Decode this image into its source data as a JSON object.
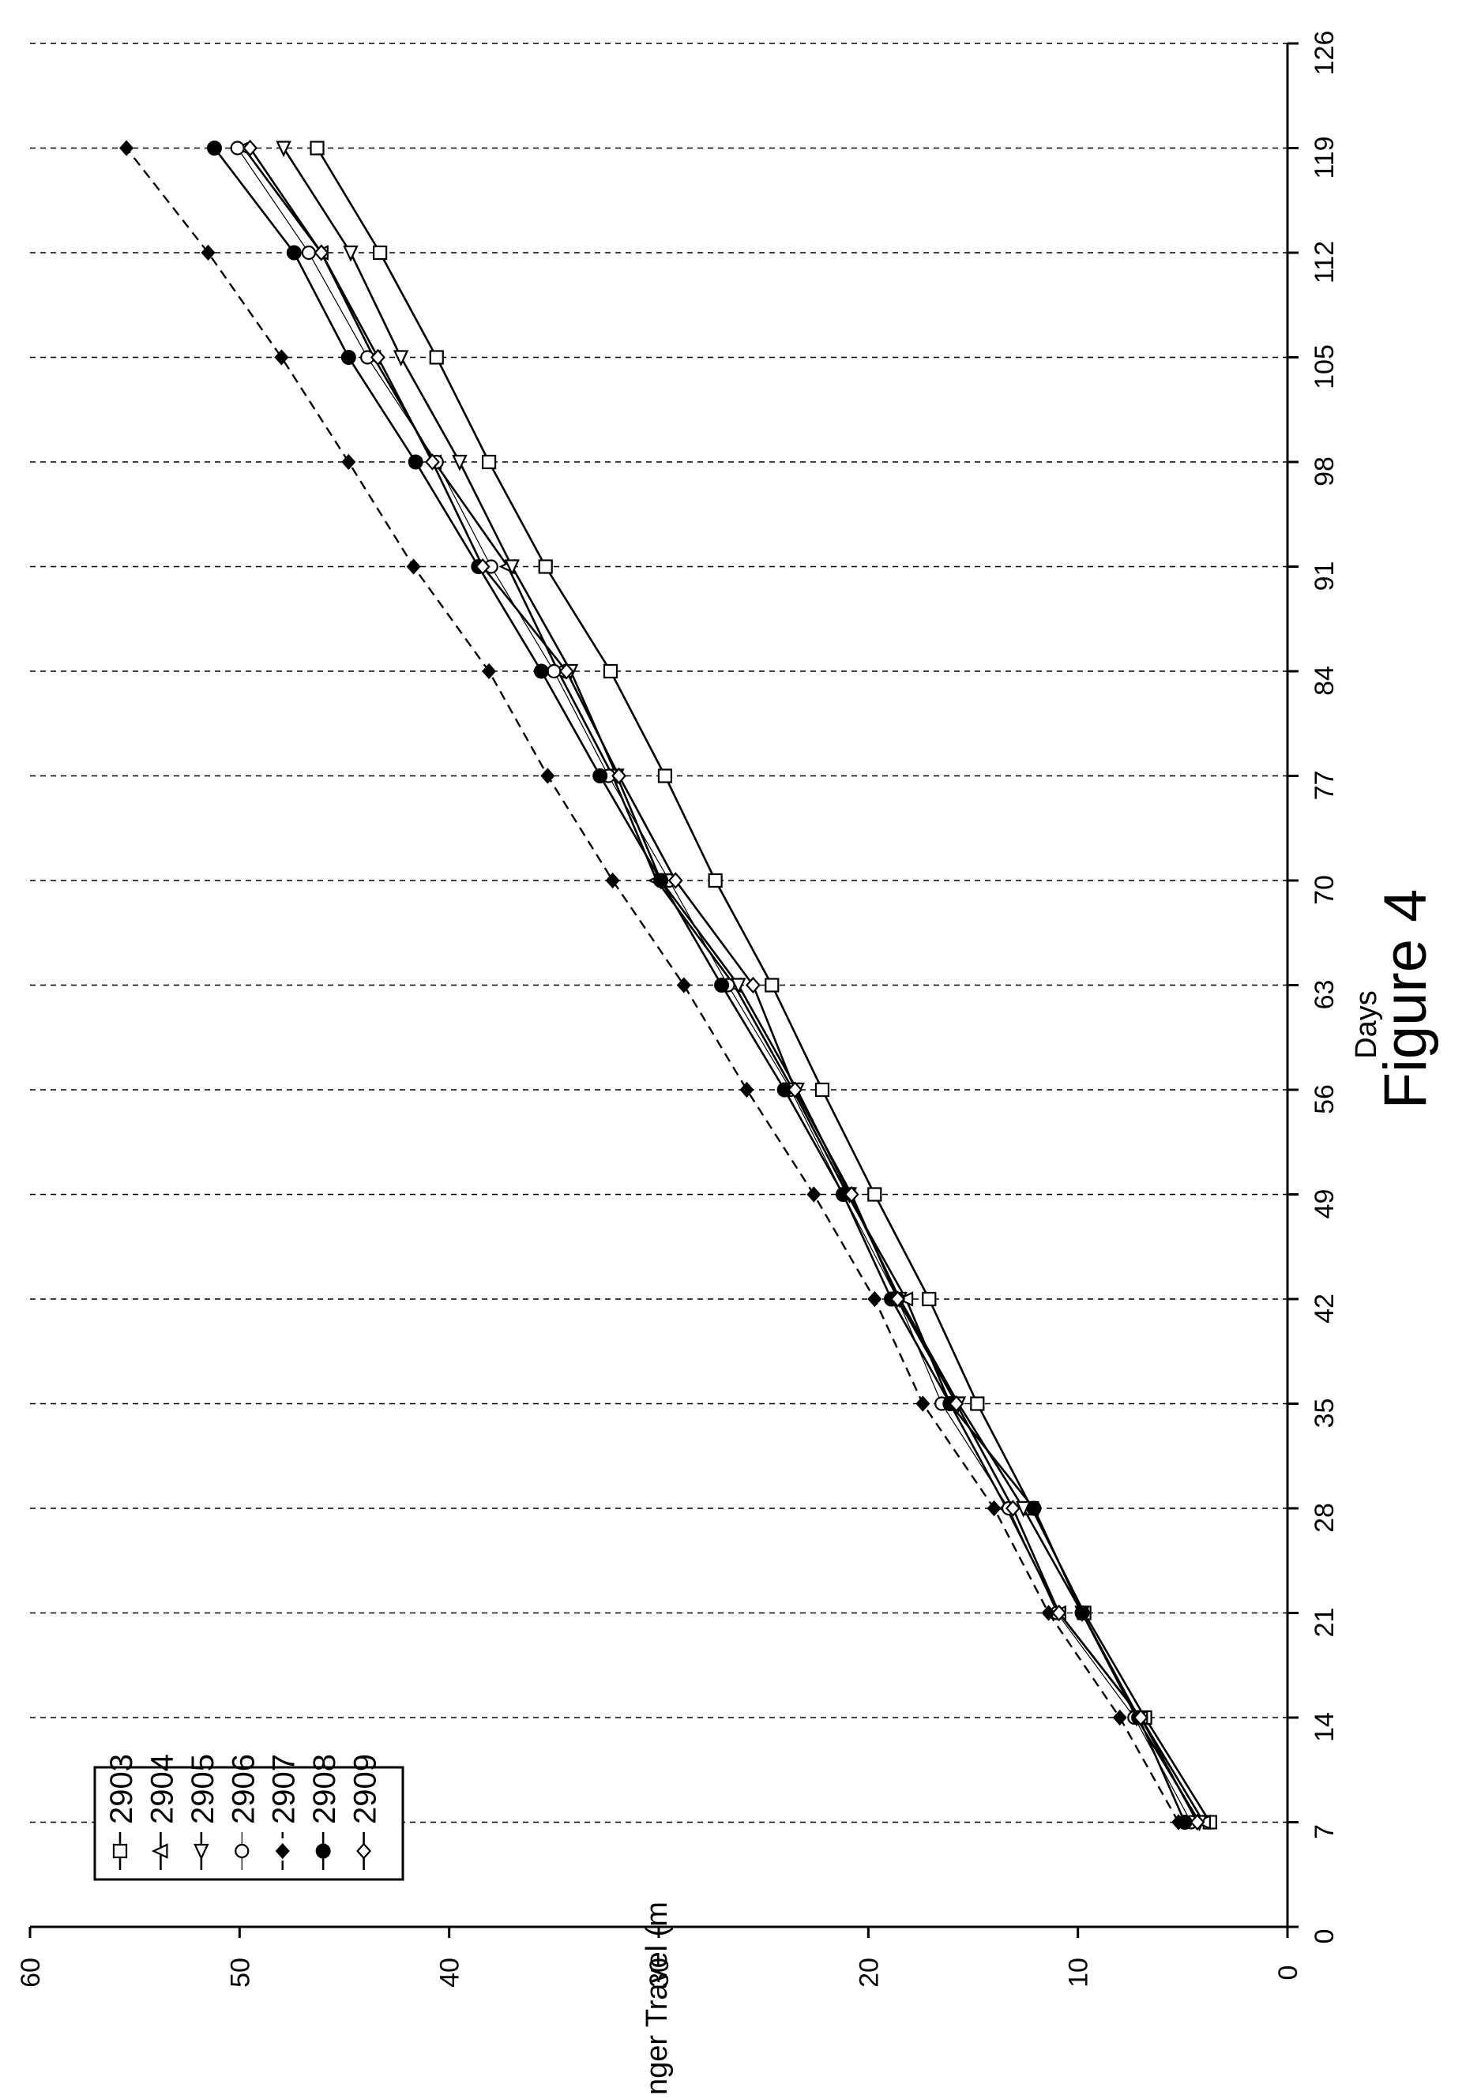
{
  "figure_label": "Figure 4",
  "chart_data": {
    "type": "line",
    "xlabel": "Days",
    "ylabel": "Plunger Travel (m",
    "xlim": [
      0,
      126
    ],
    "ylim": [
      0,
      60
    ],
    "x_ticks": [
      0,
      7,
      14,
      21,
      28,
      35,
      42,
      49,
      56,
      63,
      70,
      77,
      84,
      91,
      98,
      105,
      112,
      119,
      126
    ],
    "y_ticks": [
      0,
      10,
      20,
      30,
      40,
      50,
      60
    ],
    "grid": "dashed vertical lines at each day tick",
    "orientation": "rotated 90 degrees counter-clockwise",
    "legend_position": "top-left",
    "x": [
      7,
      14,
      21,
      28,
      35,
      42,
      49,
      56,
      63,
      70,
      77,
      84,
      91,
      98,
      105,
      112,
      119
    ],
    "series": [
      {
        "name": "2903",
        "marker": "open-square",
        "line": "solid",
        "values": [
          3.7,
          6.8,
          9.7,
          12.2,
          14.8,
          17.1,
          19.7,
          22.2,
          24.6,
          27.3,
          29.7,
          32.3,
          35.4,
          38.1,
          40.6,
          43.3,
          46.3
        ]
      },
      {
        "name": "2904",
        "marker": "open-triangle-up",
        "line": "solid",
        "values": [
          4.0,
          7.0,
          10.9,
          13.4,
          16.1,
          18.2,
          21.0,
          23.6,
          26.4,
          30.1,
          32.2,
          34.8,
          37.2,
          40.7,
          43.6,
          46.1,
          49.8
        ]
      },
      {
        "name": "2905",
        "marker": "open-triangle-right",
        "line": "solid",
        "values": [
          4.2,
          7.2,
          9.8,
          12.6,
          15.7,
          18.5,
          20.9,
          23.4,
          26.2,
          29.9,
          32.0,
          34.2,
          37.0,
          39.5,
          42.3,
          44.7,
          47.9
        ]
      },
      {
        "name": "2906",
        "marker": "open-circle",
        "line": "thin-solid",
        "values": [
          4.6,
          7.3,
          11.0,
          13.3,
          16.5,
          18.6,
          21.2,
          23.7,
          26.7,
          29.5,
          32.4,
          35.0,
          38.0,
          40.6,
          43.9,
          46.7,
          50.1
        ]
      },
      {
        "name": "2907",
        "marker": "filled-diamond",
        "line": "dashed",
        "values": [
          5.2,
          8.0,
          11.4,
          14.0,
          17.4,
          19.7,
          22.6,
          25.8,
          28.8,
          32.2,
          35.3,
          38.1,
          41.7,
          44.8,
          48.0,
          51.5,
          55.4
        ]
      },
      {
        "name": "2908",
        "marker": "filled-circle",
        "line": "solid",
        "values": [
          4.9,
          7.1,
          9.8,
          12.1,
          16.1,
          18.9,
          21.2,
          24.0,
          27.0,
          29.9,
          32.8,
          35.6,
          38.6,
          41.6,
          44.8,
          47.4,
          51.2
        ]
      },
      {
        "name": "2909",
        "marker": "open-diamond",
        "line": "solid",
        "values": [
          4.3,
          7.0,
          10.9,
          13.1,
          15.8,
          18.6,
          20.8,
          23.5,
          25.5,
          29.2,
          31.9,
          34.4,
          38.4,
          40.8,
          43.4,
          46.1,
          49.5
        ]
      }
    ]
  }
}
